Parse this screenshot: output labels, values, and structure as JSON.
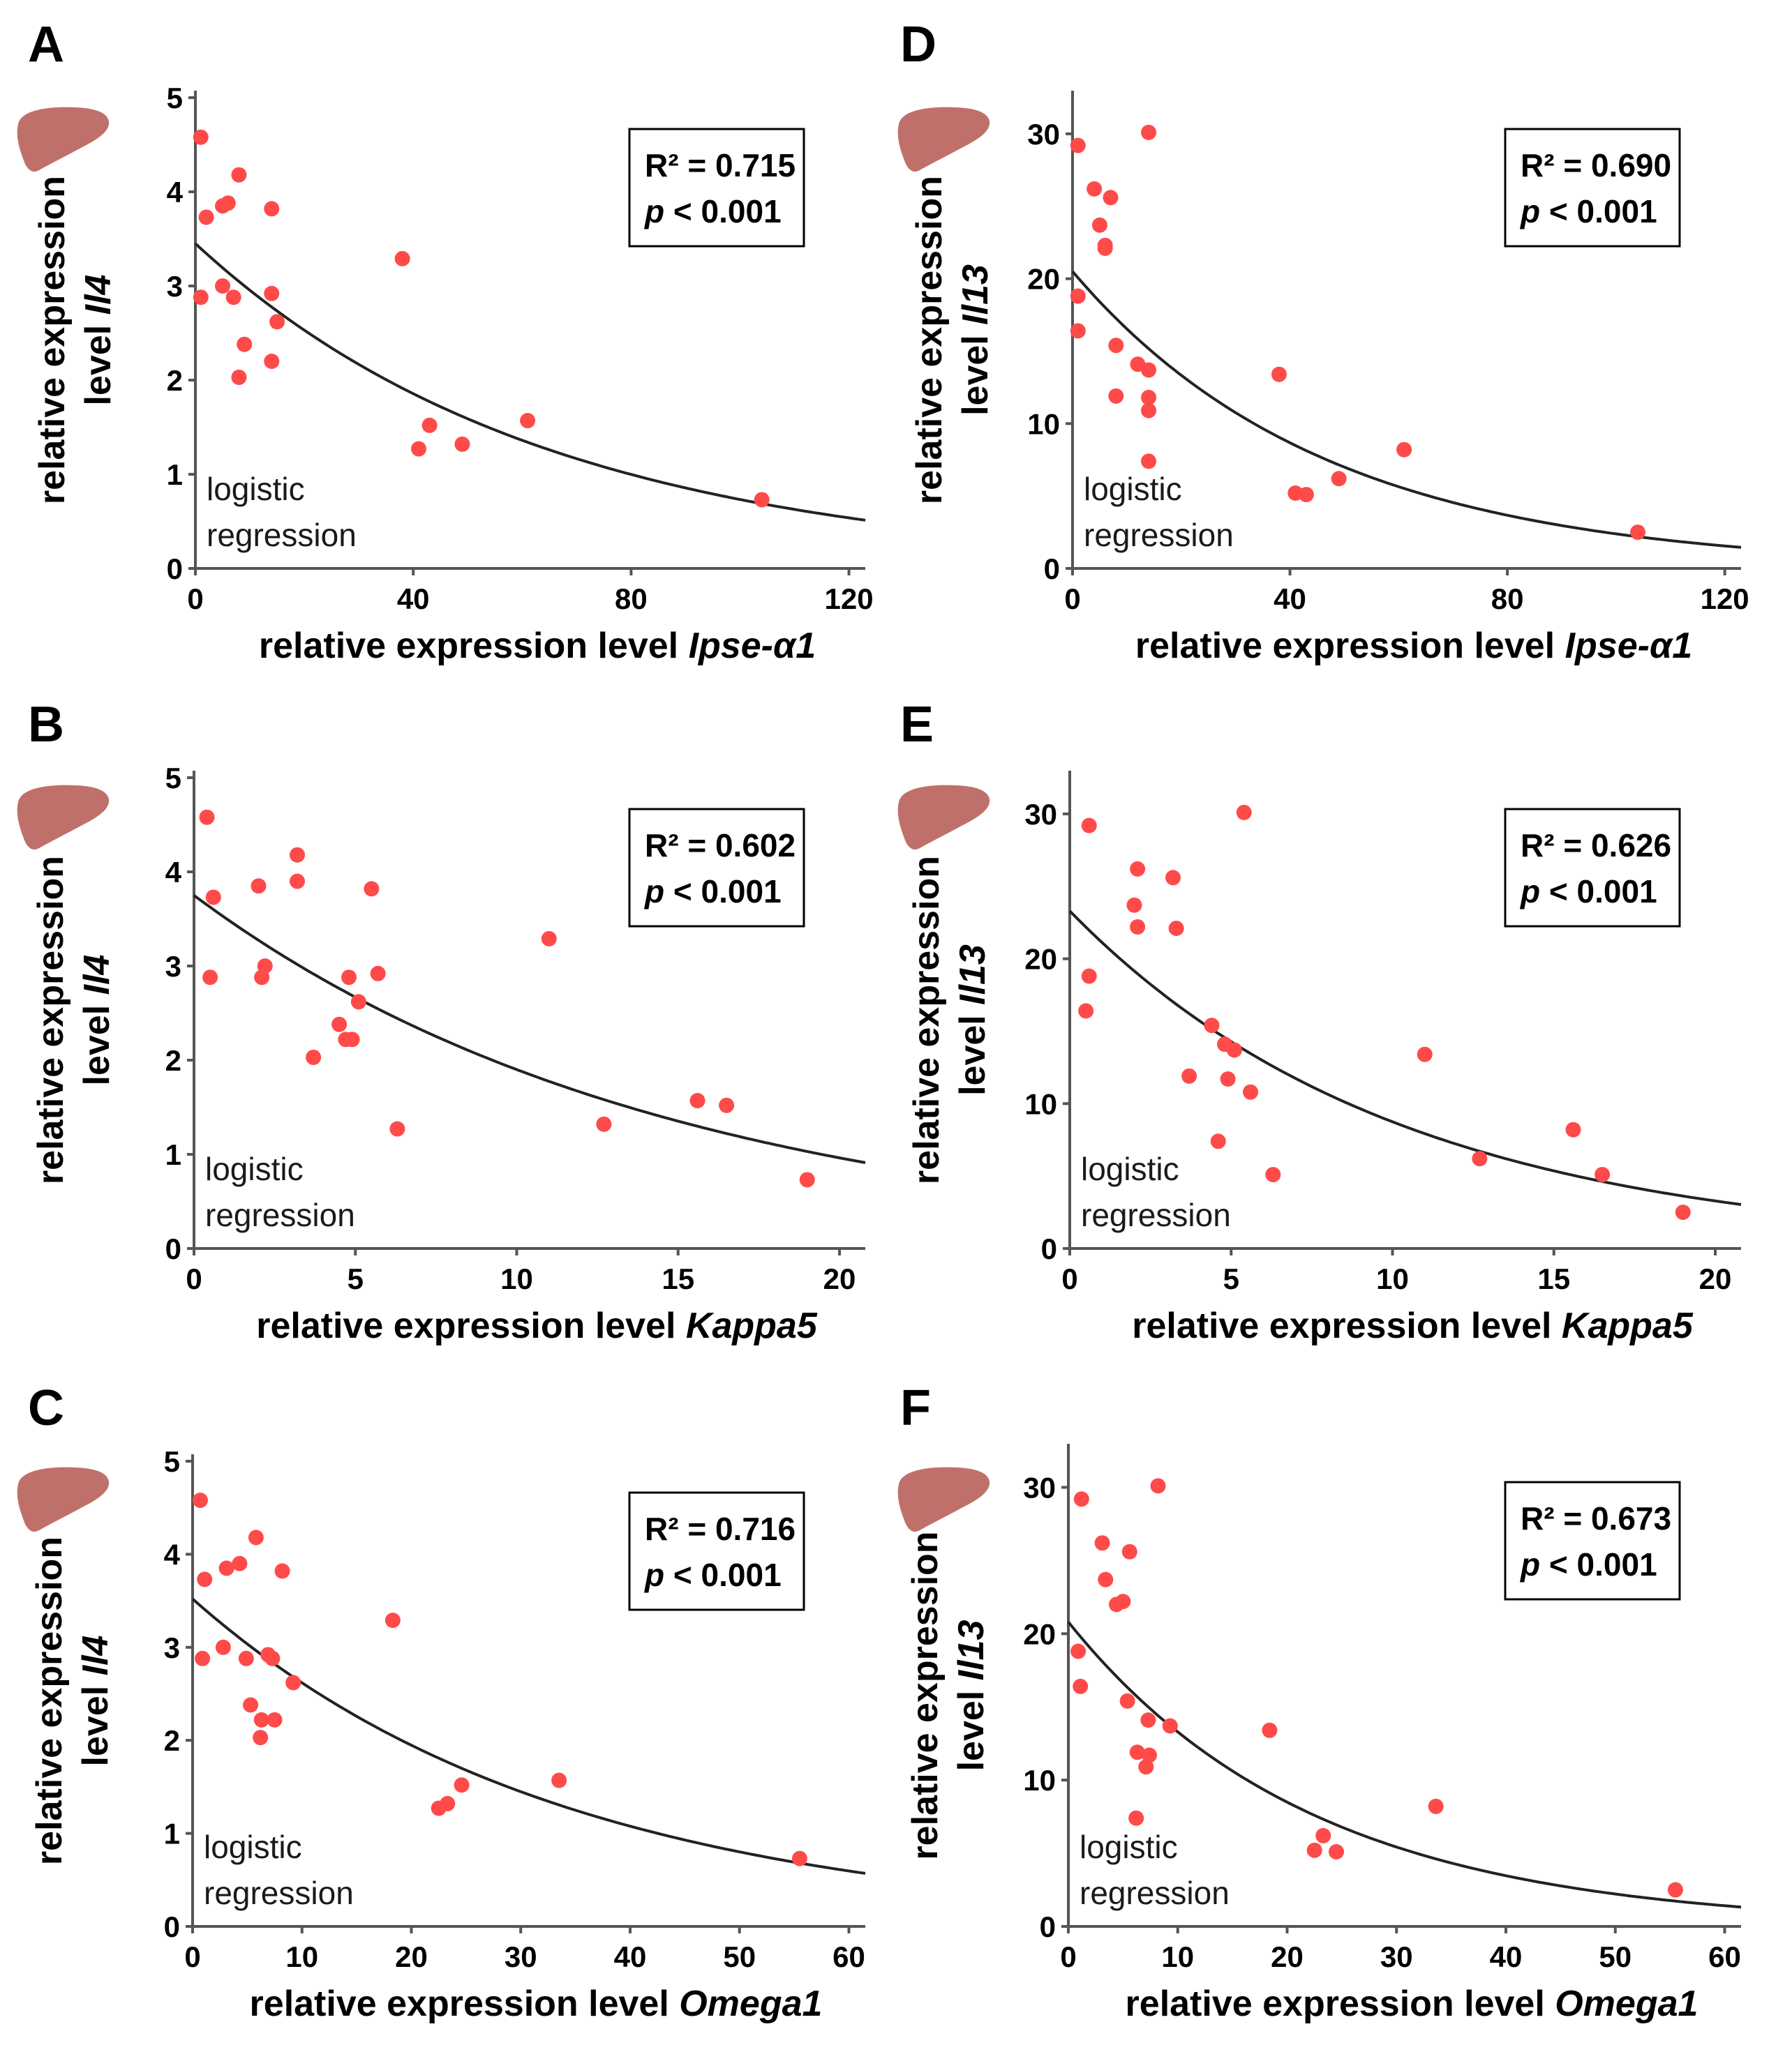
{
  "colors": {
    "point": "#ff4a4a",
    "curve": "#222222",
    "liver": "#c0706a"
  },
  "icon": "liver-icon",
  "regression_label": [
    "logistic",
    "regression"
  ],
  "chart_data": [
    {
      "panel": "A",
      "type": "scatter",
      "xlabel": "relative expression level",
      "xlabel_gene": "Ipse-α1",
      "ylabel": "relative expression",
      "ylabel_prefix": "level",
      "ylabel_gene": "Il4",
      "xlim": [
        0,
        123
      ],
      "ylim": [
        0,
        5
      ],
      "xticks": [
        0,
        40,
        80,
        120
      ],
      "yticks": [
        0,
        1,
        2,
        3,
        4,
        5
      ],
      "r2": "R² = 0.715",
      "p": "< 0.001",
      "fit": {
        "a": 3.45,
        "b": 0.0155
      },
      "points": [
        [
          1,
          4.58
        ],
        [
          1,
          2.88
        ],
        [
          2,
          3.73
        ],
        [
          5,
          3.85
        ],
        [
          5,
          3.0
        ],
        [
          6,
          3.88
        ],
        [
          7,
          2.88
        ],
        [
          8,
          4.18
        ],
        [
          9,
          2.38
        ],
        [
          8,
          2.03
        ],
        [
          14,
          2.92
        ],
        [
          14,
          3.82
        ],
        [
          14,
          2.2
        ],
        [
          15,
          2.62
        ],
        [
          38,
          3.29
        ],
        [
          41,
          1.27
        ],
        [
          43,
          1.52
        ],
        [
          49,
          1.32
        ],
        [
          61,
          1.57
        ],
        [
          104,
          0.73
        ]
      ]
    },
    {
      "panel": "B",
      "type": "scatter",
      "xlabel": "relative expression level",
      "xlabel_gene": "Kappa5",
      "ylabel": "relative expression",
      "ylabel_prefix": "level",
      "ylabel_gene": "Il4",
      "xlim": [
        0,
        20.8
      ],
      "ylim": [
        0,
        5
      ],
      "xticks": [
        0,
        5,
        10,
        15,
        20
      ],
      "yticks": [
        0,
        1,
        2,
        3,
        4,
        5
      ],
      "r2": "R² = 0.602",
      "p": "< 0.001",
      "fit": {
        "a": 3.75,
        "b": 0.068
      },
      "points": [
        [
          0.4,
          4.58
        ],
        [
          0.6,
          3.73
        ],
        [
          0.5,
          2.88
        ],
        [
          2.0,
          3.85
        ],
        [
          2.2,
          3.0
        ],
        [
          2.1,
          2.88
        ],
        [
          3.2,
          4.18
        ],
        [
          3.2,
          3.9
        ],
        [
          3.7,
          2.03
        ],
        [
          4.5,
          2.38
        ],
        [
          4.7,
          2.22
        ],
        [
          4.8,
          2.88
        ],
        [
          4.9,
          2.22
        ],
        [
          5.1,
          2.62
        ],
        [
          5.5,
          3.82
        ],
        [
          5.7,
          2.92
        ],
        [
          6.3,
          1.27
        ],
        [
          11.0,
          3.29
        ],
        [
          12.7,
          1.32
        ],
        [
          15.6,
          1.57
        ],
        [
          16.5,
          1.52
        ],
        [
          19.0,
          0.73
        ]
      ]
    },
    {
      "panel": "C",
      "type": "scatter",
      "xlabel": "relative expression level",
      "xlabel_gene": "Omega1",
      "ylabel": "relative expression",
      "ylabel_prefix": "level",
      "ylabel_gene": "Il4",
      "xlim": [
        0,
        61.5
      ],
      "ylim": [
        0,
        5
      ],
      "xticks": [
        0,
        10,
        20,
        30,
        40,
        50,
        60
      ],
      "yticks": [
        0,
        1,
        2,
        3,
        4,
        5
      ],
      "r2": "R² = 0.716",
      "p": "< 0.001",
      "fit": {
        "a": 3.52,
        "b": 0.0296
      },
      "points": [
        [
          0.7,
          4.58
        ],
        [
          0.9,
          2.88
        ],
        [
          1.1,
          3.73
        ],
        [
          2.8,
          3.0
        ],
        [
          3.1,
          3.85
        ],
        [
          4.3,
          3.9
        ],
        [
          4.9,
          2.88
        ],
        [
          5.3,
          2.38
        ],
        [
          5.8,
          4.18
        ],
        [
          6.2,
          2.03
        ],
        [
          6.3,
          2.22
        ],
        [
          6.9,
          2.92
        ],
        [
          7.3,
          2.88
        ],
        [
          7.5,
          2.22
        ],
        [
          8.2,
          3.82
        ],
        [
          9.2,
          2.62
        ],
        [
          18.3,
          3.29
        ],
        [
          22.5,
          1.27
        ],
        [
          23.3,
          1.32
        ],
        [
          24.6,
          1.52
        ],
        [
          33.5,
          1.57
        ],
        [
          55.5,
          0.73
        ]
      ]
    },
    {
      "panel": "D",
      "type": "scatter",
      "xlabel": "relative expression level",
      "xlabel_gene": "Ipse-α1",
      "ylabel": "relative expression",
      "ylabel_prefix": "level",
      "ylabel_gene": "Il13",
      "xlim": [
        0,
        123
      ],
      "ylim": [
        0,
        32.5
      ],
      "xticks": [
        0,
        40,
        80,
        120
      ],
      "yticks": [
        0,
        10,
        20,
        30
      ],
      "r2": "R² = 0.690",
      "p": "< 0.001",
      "fit": {
        "a": 20.5,
        "b": 0.0215
      },
      "points": [
        [
          1,
          29.2
        ],
        [
          1,
          18.8
        ],
        [
          1,
          16.4
        ],
        [
          4,
          26.2
        ],
        [
          5,
          23.7
        ],
        [
          6,
          22.3
        ],
        [
          6,
          22.1
        ],
        [
          7,
          25.6
        ],
        [
          8,
          15.4
        ],
        [
          8,
          11.9
        ],
        [
          12,
          14.1
        ],
        [
          14,
          30.1
        ],
        [
          14,
          13.7
        ],
        [
          14,
          11.8
        ],
        [
          14,
          10.9
        ],
        [
          14,
          7.4
        ],
        [
          38,
          13.4
        ],
        [
          41,
          5.2
        ],
        [
          43,
          5.1
        ],
        [
          49,
          6.2
        ],
        [
          61,
          8.2
        ],
        [
          104,
          2.5
        ]
      ]
    },
    {
      "panel": "E",
      "type": "scatter",
      "xlabel": "relative expression level",
      "xlabel_gene": "Kappa5",
      "ylabel": "relative expression",
      "ylabel_prefix": "level",
      "ylabel_gene": "Il13",
      "xlim": [
        0,
        20.8
      ],
      "ylim": [
        0,
        32.5
      ],
      "xticks": [
        0,
        5,
        10,
        15,
        20
      ],
      "yticks": [
        0,
        10,
        20,
        30
      ],
      "r2": "R² = 0.626",
      "p": "< 0.001",
      "fit": {
        "a": 23.3,
        "b": 0.098
      },
      "points": [
        [
          0.6,
          29.2
        ],
        [
          0.6,
          18.8
        ],
        [
          0.5,
          16.4
        ],
        [
          2.0,
          23.7
        ],
        [
          2.1,
          26.2
        ],
        [
          2.1,
          22.2
        ],
        [
          3.2,
          25.6
        ],
        [
          3.3,
          22.1
        ],
        [
          3.7,
          11.9
        ],
        [
          4.4,
          15.4
        ],
        [
          4.6,
          7.4
        ],
        [
          4.8,
          14.1
        ],
        [
          4.9,
          11.7
        ],
        [
          5.1,
          13.7
        ],
        [
          5.4,
          30.1
        ],
        [
          5.6,
          10.8
        ],
        [
          6.3,
          5.1
        ],
        [
          11.0,
          13.4
        ],
        [
          12.7,
          6.2
        ],
        [
          15.6,
          8.2
        ],
        [
          16.5,
          5.1
        ],
        [
          19.0,
          2.5
        ]
      ]
    },
    {
      "panel": "F",
      "type": "scatter",
      "xlabel": "relative expression level",
      "xlabel_gene": "Omega1",
      "ylabel": "relative expression",
      "ylabel_prefix": "level",
      "ylabel_gene": "Il13",
      "xlim": [
        0,
        61.5
      ],
      "ylim": [
        0,
        32.5
      ],
      "xticks": [
        0,
        10,
        20,
        30,
        40,
        50,
        60
      ],
      "yticks": [
        0,
        10,
        20,
        30
      ],
      "r2": "R² = 0.673",
      "p": "< 0.001",
      "fit": {
        "a": 20.8,
        "b": 0.0448
      },
      "points": [
        [
          1.2,
          29.2
        ],
        [
          0.9,
          18.8
        ],
        [
          1.1,
          16.4
        ],
        [
          3.1,
          26.2
        ],
        [
          3.4,
          23.7
        ],
        [
          4.4,
          22.0
        ],
        [
          5.0,
          22.2
        ],
        [
          5.6,
          25.6
        ],
        [
          5.4,
          15.4
        ],
        [
          6.2,
          7.4
        ],
        [
          6.3,
          11.9
        ],
        [
          7.3,
          14.1
        ],
        [
          7.1,
          10.9
        ],
        [
          7.4,
          11.7
        ],
        [
          8.2,
          30.1
        ],
        [
          9.3,
          13.7
        ],
        [
          18.4,
          13.4
        ],
        [
          22.5,
          5.2
        ],
        [
          23.3,
          6.2
        ],
        [
          24.5,
          5.1
        ],
        [
          33.6,
          8.2
        ],
        [
          55.5,
          2.5
        ]
      ]
    }
  ]
}
